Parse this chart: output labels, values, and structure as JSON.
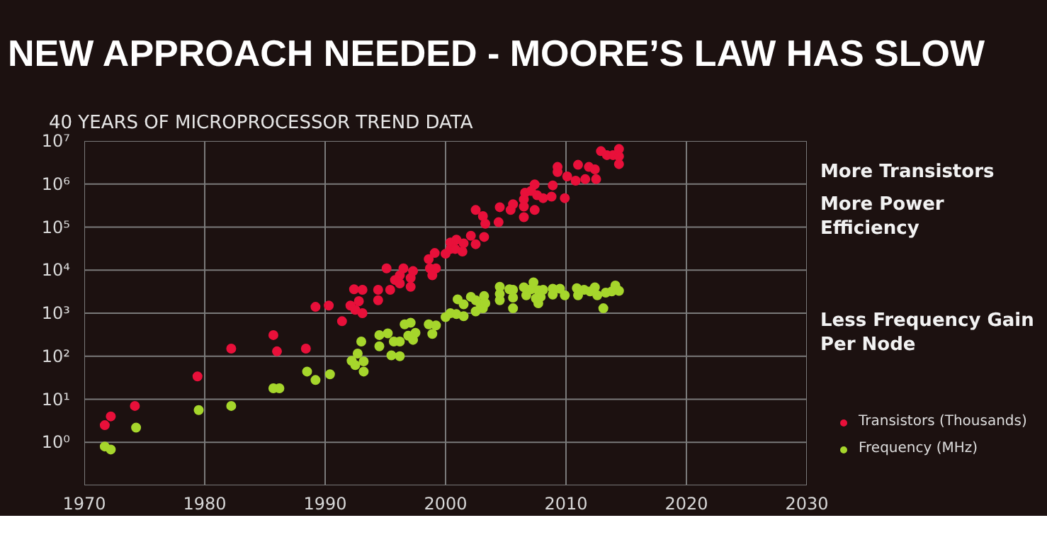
{
  "chart_data": {
    "type": "scatter",
    "title": "NEW APPROACH NEEDED - MOORE’S LAW HAS SLOW",
    "subtitle": "40 YEARS OF MICROPROCESSOR TREND DATA",
    "annotations": [
      "More Transistors",
      "More Power Efficiency",
      "Less Frequency Gain\nPer Node"
    ],
    "log": true,
    "grid": true,
    "marker": "circle",
    "legend": "bottom right",
    "xlim": [
      1970,
      2030
    ],
    "xticks": [
      1970,
      1980,
      1990,
      2000,
      2010,
      2020,
      2030
    ],
    "ylim": [
      0.1,
      10000000
    ],
    "yticks": [
      {
        "value": 1,
        "label": "10⁰"
      },
      {
        "value": 10,
        "label": "10¹"
      },
      {
        "value": 100,
        "label": "10²"
      },
      {
        "value": 1000,
        "label": "10³"
      },
      {
        "value": 10000,
        "label": "10⁴"
      },
      {
        "value": 100000,
        "label": "10⁵"
      },
      {
        "value": 1000000,
        "label": "10⁶"
      },
      {
        "value": 10000000,
        "label": "10⁷"
      }
    ],
    "series": [
      {
        "name": "Transistors (Thousands)",
        "color": "#e8103a",
        "x": [
          1971.7,
          1972.2,
          1974.2,
          1979.4,
          1982.2,
          1985.7,
          1986.0,
          1988.4,
          1989.2,
          1990.3,
          1991.4,
          1992.1,
          1992.4,
          1992.8,
          1992.5,
          1993.1,
          1993.1,
          1994.4,
          1994.4,
          1995.1,
          1995.4,
          1995.8,
          1996.2,
          1996.2,
          1996.5,
          1997.1,
          1997.1,
          1997.3,
          1998.6,
          1998.7,
          1998.9,
          1999.2,
          1999.1,
          2000.0,
          2000.4,
          2000.4,
          2000.8,
          2000.9,
          2001.4,
          2001.5,
          2002.1,
          2002.5,
          2002.5,
          2003.1,
          2003.2,
          2003.3,
          2004.4,
          2004.5,
          2005.4,
          2005.6,
          2006.5,
          2006.5,
          2006.5,
          2006.6,
          2007.1,
          2007.4,
          2007.4,
          2007.6,
          2008.1,
          2008.8,
          2008.9,
          2009.3,
          2009.3,
          2009.9,
          2010.1,
          2010.8,
          2011.0,
          2011.6,
          2011.9,
          2012.4,
          2012.5,
          2012.9,
          2013.4,
          2013.9,
          2014.4,
          2014.4,
          2014.4
        ],
        "values": [
          2.5,
          4,
          7,
          34,
          150,
          310,
          130,
          150,
          1400,
          1500,
          650,
          1500,
          3600,
          1900,
          1200,
          3500,
          1000,
          3500,
          2000,
          11000,
          3500,
          5900,
          7600,
          4900,
          11000,
          6600,
          4100,
          9500,
          18000,
          11000,
          7600,
          11000,
          25000,
          24000,
          31000,
          44000,
          31000,
          51000,
          27000,
          42000,
          63000,
          40000,
          250000,
          180000,
          59000,
          120000,
          130000,
          290000,
          250000,
          340000,
          440000,
          300000,
          170000,
          630000,
          690000,
          980000,
          250000,
          550000,
          470000,
          510000,
          930000,
          2500000,
          1900000,
          470000,
          1500000,
          1200000,
          2800000,
          1300000,
          2500000,
          2200000,
          1300000,
          5800000,
          4700000,
          4700000,
          6500000,
          4400000,
          2900000
        ]
      },
      {
        "name": "Frequency (MHz)",
        "color": "#a6d62c",
        "x": [
          1971.7,
          1972.2,
          1974.3,
          1979.5,
          1982.2,
          1985.7,
          1986.2,
          1988.5,
          1989.2,
          1990.4,
          1992.2,
          1992.5,
          1992.7,
          1993.0,
          1993.2,
          1993.2,
          1994.5,
          1994.5,
          1995.2,
          1995.5,
          1995.7,
          1996.2,
          1996.2,
          1996.6,
          1997.1,
          1996.9,
          1997.3,
          1997.5,
          1998.6,
          1998.9,
          1999.2,
          2000.0,
          2000.4,
          2000.9,
          2001.0,
          2001.5,
          2001.5,
          2002.1,
          2002.5,
          2002.5,
          2002.9,
          2003.1,
          2003.2,
          2003.3,
          2004.5,
          2004.5,
          2004.5,
          2005.3,
          2005.6,
          2005.6,
          2005.6,
          2006.5,
          2006.7,
          2007.1,
          2007.3,
          2007.5,
          2007.7,
          2007.7,
          2008.1,
          2007.9,
          2008.9,
          2008.9,
          2009.5,
          2009.9,
          2010.9,
          2011.0,
          2011.5,
          2012.0,
          2012.4,
          2012.6,
          2013.1,
          2013.3,
          2013.8,
          2014.1,
          2014.4
        ],
        "values": [
          0.8,
          0.68,
          2.2,
          5.6,
          7,
          18,
          18,
          44,
          28,
          38,
          78,
          62,
          115,
          220,
          76,
          44,
          310,
          170,
          340,
          105,
          220,
          220,
          100,
          550,
          600,
          300,
          240,
          350,
          550,
          330,
          520,
          810,
          1000,
          950,
          2100,
          850,
          1600,
          2400,
          2000,
          1100,
          1600,
          1300,
          2500,
          1700,
          4100,
          2800,
          2000,
          3600,
          3500,
          2300,
          1300,
          4000,
          2600,
          3600,
          5200,
          2200,
          1700,
          3400,
          3500,
          2400,
          3700,
          2700,
          3700,
          2600,
          3800,
          2600,
          3500,
          3200,
          4000,
          2600,
          1300,
          3000,
          3200,
          4400,
          3300
        ]
      }
    ]
  }
}
